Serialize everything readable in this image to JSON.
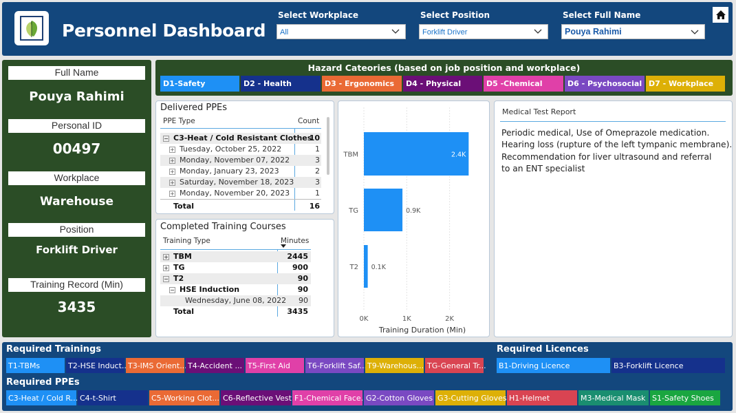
{
  "header": {
    "title": "Personnel Dashboard",
    "slicers": [
      {
        "label": "Select Workplace",
        "value": "All"
      },
      {
        "label": "Select Position",
        "value": "Forklift Driver"
      },
      {
        "label": "Select Full Name",
        "value": "Pouya Rahimi"
      }
    ]
  },
  "profile": {
    "full_name_label": "Full Name",
    "full_name": "Pouya Rahimi",
    "personal_id_label": "Personal ID",
    "personal_id": "00497",
    "workplace_label": "Workplace",
    "workplace": "Warehouse",
    "position_label": "Position",
    "position": "Forklift Driver",
    "training_label": "Training Record (Min)",
    "training": "3435"
  },
  "hazards": {
    "title": "Hazard Cateories (based on job position and workplace)",
    "items": [
      {
        "label": "D1-Safety",
        "color": "#1e90f5"
      },
      {
        "label": "D2 - Health",
        "color": "#15318c"
      },
      {
        "label": "D3 - Ergonomics",
        "color": "#ea6a35"
      },
      {
        "label": "D4 - Physical",
        "color": "#6b0f77"
      },
      {
        "label": "D5 -Chemical",
        "color": "#e040a8"
      },
      {
        "label": "D6 - Psychosocial",
        "color": "#7a49c2"
      },
      {
        "label": "D7 - Workplace",
        "color": "#ddb007"
      }
    ]
  },
  "ppe_table": {
    "title": "Delivered PPEs",
    "col1": "PPE Type",
    "col2": "Count",
    "rows": [
      {
        "label": "C3-Heat / Cold Resistant Clothes",
        "value": "10"
      },
      {
        "label": "Tuesday, October 25, 2022",
        "value": "1"
      },
      {
        "label": "Monday, November 07, 2022",
        "value": "3"
      },
      {
        "label": "Monday, January 23, 2023",
        "value": "2"
      },
      {
        "label": "Saturday, November 18, 2023",
        "value": "3"
      },
      {
        "label": "Monday, November 20, 2023",
        "value": "1"
      }
    ],
    "total_label": "Total",
    "total": "16"
  },
  "training_table": {
    "title": "Completed Training Courses",
    "col1": "Training Type",
    "col2": "Minutes",
    "rows": [
      {
        "label": "TBM",
        "value": "2445"
      },
      {
        "label": "TG",
        "value": "900"
      },
      {
        "label": "T2",
        "value": "90"
      },
      {
        "label": "HSE Induction",
        "value": "90"
      },
      {
        "label": "Wednesday, June 08, 2022",
        "value": "90"
      }
    ],
    "total_label": "Total",
    "total": "3435"
  },
  "chart_data": {
    "type": "bar",
    "orientation": "horizontal",
    "categories": [
      "TBM",
      "TG",
      "T2"
    ],
    "values": [
      2445,
      900,
      90
    ],
    "data_labels": [
      "2.4K",
      "0.9K",
      "0.1K"
    ],
    "xlabel": "Training Duration (Min)",
    "ylabel": "",
    "xlim": [
      0,
      2600
    ],
    "xticks": [
      "0K",
      "1K",
      "2K"
    ],
    "xtick_values": [
      0,
      1000,
      2000
    ],
    "bar_color": "#1e90f5",
    "grid": true
  },
  "medical": {
    "title": "Medical Test Report",
    "lines": [
      "Periodic medical, Use of Omeprazole medication.",
      "Hearing loss (rupture of the left tympanic membrane).",
      "Recommendation for liver ultrasound and referral",
      "to an ENT specialist"
    ]
  },
  "required_trainings": {
    "title": "Required Trainings",
    "items": [
      {
        "label": "T1-TBMs",
        "color": "#1e90f5"
      },
      {
        "label": "T2-HSE Induct...",
        "color": "#15318c"
      },
      {
        "label": "T3-IMS Orient...",
        "color": "#ea6a35"
      },
      {
        "label": "T4-Accident ...",
        "color": "#6b0f77"
      },
      {
        "label": "T5-First Aid",
        "color": "#e040a8"
      },
      {
        "label": "T6-Forklift Saf...",
        "color": "#7a49c2"
      },
      {
        "label": "T9-Warehous...",
        "color": "#ddb007"
      },
      {
        "label": "TG-General Tr...",
        "color": "#d94452"
      }
    ]
  },
  "required_licences": {
    "title": "Required Licences",
    "items": [
      {
        "label": "B1-Driving Licence",
        "color": "#1e90f5"
      },
      {
        "label": "B3-Forklift Licence",
        "color": "#15318c"
      }
    ]
  },
  "required_ppes": {
    "title": "Required PPEs",
    "items": [
      {
        "label": "C3-Heat / Cold R...",
        "color": "#1e90f5"
      },
      {
        "label": "C4-t-Shirt",
        "color": "#15318c"
      },
      {
        "label": "C5-Working Clot...",
        "color": "#ea6a35"
      },
      {
        "label": "C6-Reflective Vest",
        "color": "#6b0f77"
      },
      {
        "label": "F1-Chemical Face...",
        "color": "#e040a8"
      },
      {
        "label": "G2-Cotton Gloves",
        "color": "#7a49c2"
      },
      {
        "label": "G3-Cutting Gloves",
        "color": "#ddb007"
      },
      {
        "label": "H1-Helmet",
        "color": "#d94452"
      },
      {
        "label": "M3-Medical Mask",
        "color": "#1a8e70"
      },
      {
        "label": "S1-Safety Shoes",
        "color": "#1aa640"
      }
    ]
  }
}
